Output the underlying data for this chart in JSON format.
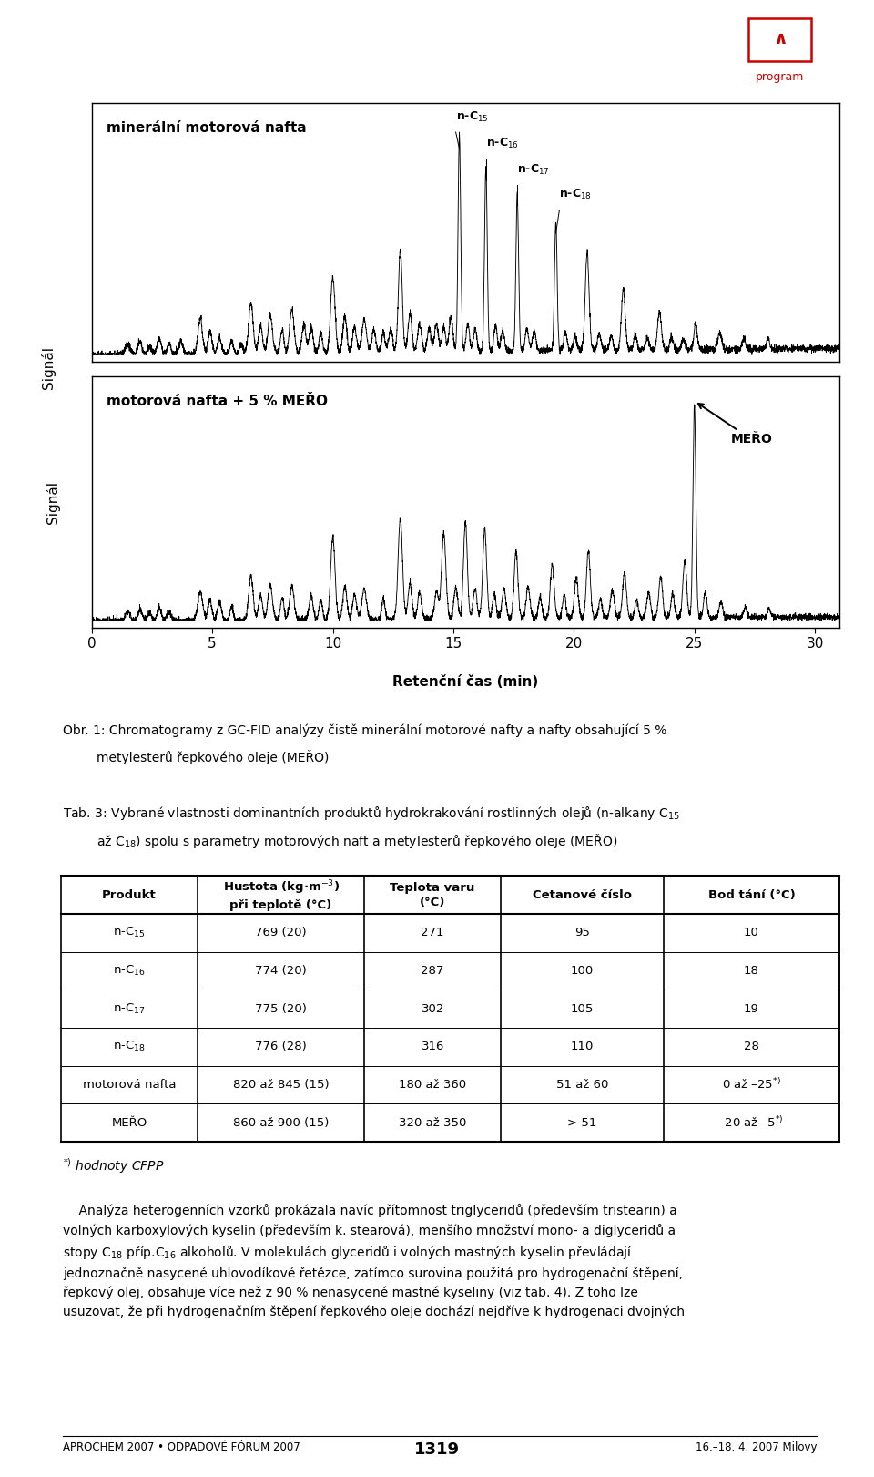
{
  "page_bg": "#ffffff",
  "logo_color": "#cc0000",
  "xmin": 0,
  "xmax": 31,
  "xlabel": "Retenční čas (min)",
  "ylabel": "Signál",
  "top_label": "minerální motorová nafta",
  "bottom_label": "motorová nafta + 5 % MEŘO",
  "mero_label": "MEŘO",
  "table_headers": [
    "Produkt",
    "Hustota (kg·m$^{-3}$)\npři teplotě (°C)",
    "Teplota varu\n(°C)",
    "Cetanové číslo",
    "Bod tání (°C)"
  ],
  "table_rows": [
    [
      "n-C$_{15}$",
      "769 (20)",
      "271",
      "95",
      "10"
    ],
    [
      "n-C$_{16}$",
      "774 (20)",
      "287",
      "100",
      "18"
    ],
    [
      "n-C$_{17}$",
      "775 (20)",
      "302",
      "105",
      "19"
    ],
    [
      "n-C$_{18}$",
      "776 (28)",
      "316",
      "110",
      "28"
    ],
    [
      "motorová nafta",
      "820 až 845 (15)",
      "180 až 360",
      "51 až 60",
      "0 až –25$^{*)}$"
    ],
    [
      "MEŘO",
      "860 až 900 (15)",
      "320 až 350",
      "> 51",
      "-20 až –5$^{*)}$"
    ]
  ],
  "footer_left": "APROCHEM 2007 • ODPADOVÉ FÓRUM 2007",
  "footer_center": "1319",
  "footer_right": "16.–18. 4. 2007 Milovy"
}
